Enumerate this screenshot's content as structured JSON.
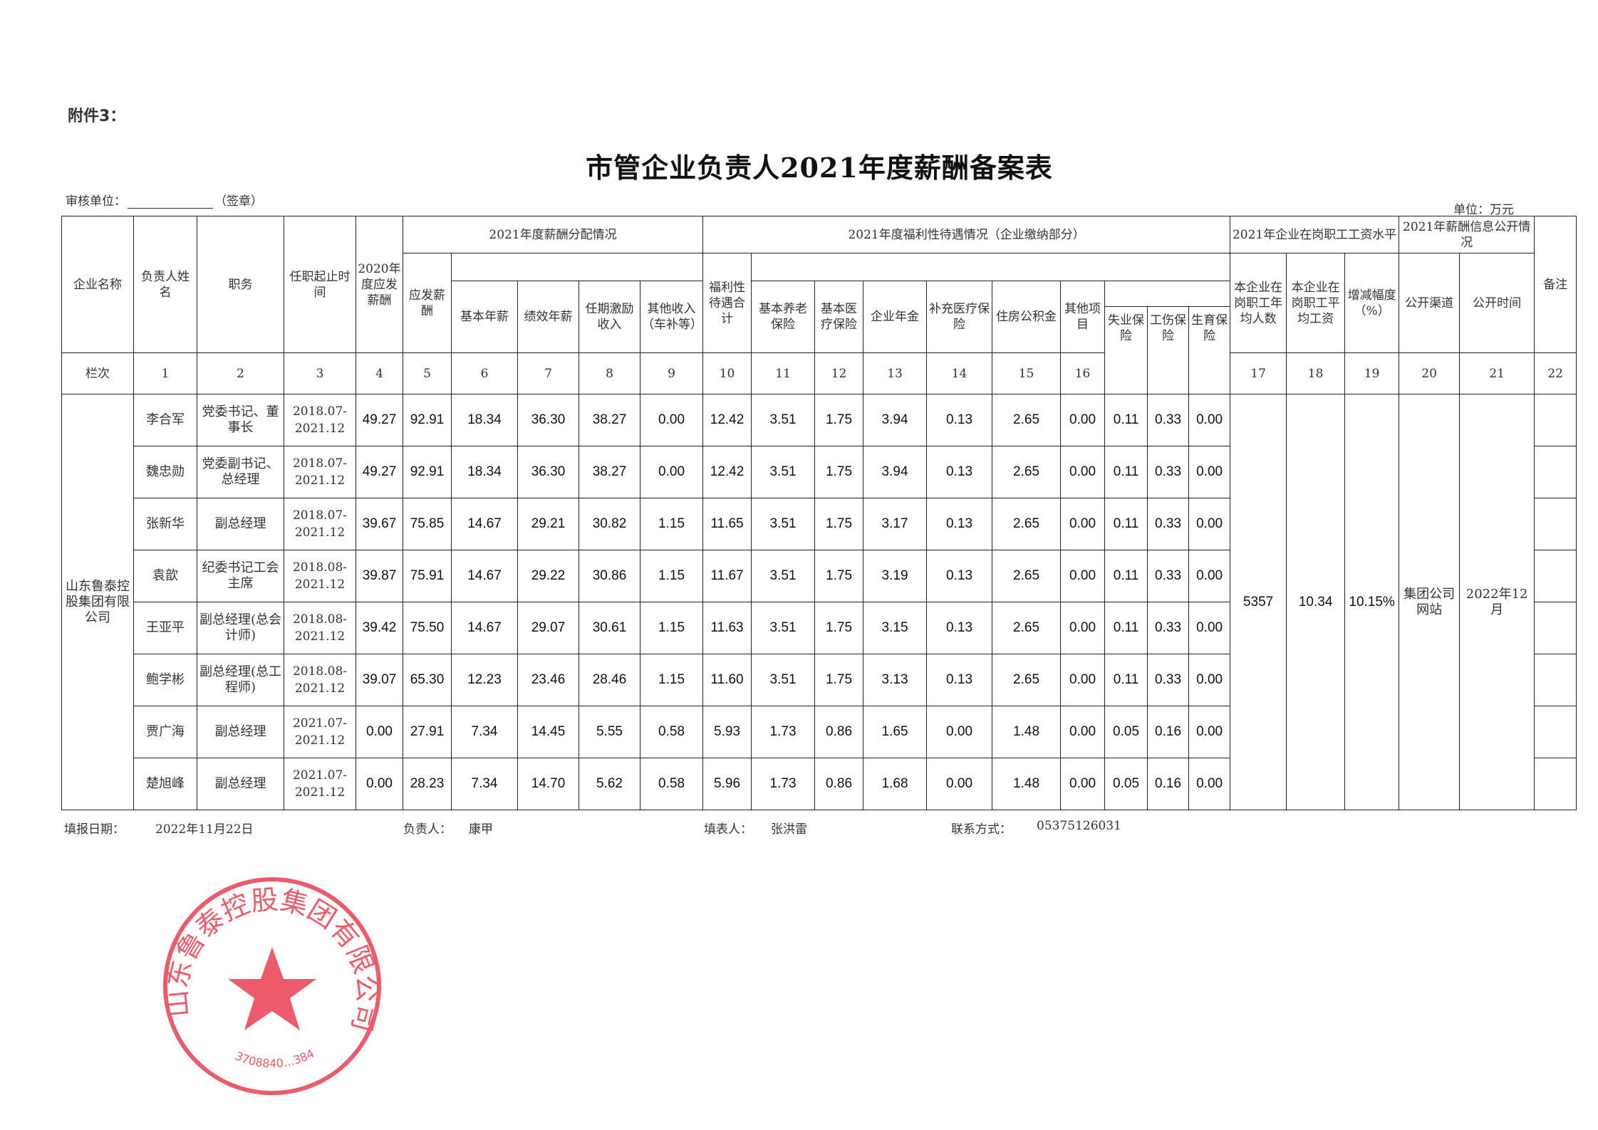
{
  "attachment": "附件3：",
  "title": "市管企业负责人2021年度薪酬备案表",
  "audit_unit_label": "审核单位：",
  "audit_seal_note": "（签章）",
  "unit": "单位：万元",
  "stamp": {
    "text": "山东鲁泰控股集团有限公司",
    "code": "3708840…384",
    "color": "#e8384a"
  },
  "headers": {
    "company": "企业名称",
    "name": "负责人姓名",
    "position": "职务",
    "term": "任职起止时间",
    "pay2020": "2020年度应发薪酬",
    "group_pay": "2021年度薪酬分配情况",
    "payable": "应发薪酬",
    "base": "基本年薪",
    "perf": "绩效年薪",
    "tenure": "任期激励收入",
    "other_income": "其他收入（车补等）",
    "group_welfare": "2021年度福利性待遇情况（企业缴纳部分）",
    "welfare_total": "福利性待遇合计",
    "pension": "基本养老保险",
    "medical": "基本医疗保险",
    "annuity": "企业年金",
    "supp_medical": "补充医疗保险",
    "housing": "住房公积金",
    "other_items": "其他项目",
    "unemployment": "失业保险",
    "injury": "工伤保险",
    "maternity": "生育保险",
    "group_wage": "2021年企业在岗职工工资水平",
    "staff_count": "本企业在岗职工年均人数",
    "avg_wage": "本企业在岗职工平均工资",
    "change": "增减幅度（%）",
    "group_disclosure": "2021年薪酬信息公开情况",
    "channel": "公开渠道",
    "time": "公开时间",
    "remark": "备注",
    "index_label": "栏次"
  },
  "index_numbers": [
    "1",
    "2",
    "3",
    "4",
    "5",
    "6",
    "7",
    "8",
    "9",
    "10",
    "11",
    "12",
    "13",
    "14",
    "15",
    "16",
    "17",
    "18",
    "19",
    "20",
    "21",
    "22"
  ],
  "company_name": "山东鲁泰控股集团有限公司",
  "shared": {
    "staff_count": "5357",
    "avg_wage": "10.34",
    "change": "10.15%",
    "channel": "集团公司网站",
    "time": "2022年12月"
  },
  "rows": [
    {
      "name": "李合军",
      "position": "党委书记、董事长",
      "term": "2018.07-\n2021.12",
      "values": [
        "49.27",
        "92.91",
        "18.34",
        "36.30",
        "38.27",
        "0.00",
        "12.42",
        "3.51",
        "1.75",
        "3.94",
        "0.13",
        "2.65",
        "0.00",
        "0.11",
        "0.33",
        "0.00"
      ]
    },
    {
      "name": "魏忠勋",
      "position": "党委副书记、总经理",
      "term": "2018.07-\n2021.12",
      "values": [
        "49.27",
        "92.91",
        "18.34",
        "36.30",
        "38.27",
        "0.00",
        "12.42",
        "3.51",
        "1.75",
        "3.94",
        "0.13",
        "2.65",
        "0.00",
        "0.11",
        "0.33",
        "0.00"
      ]
    },
    {
      "name": "张新华",
      "position": "副总经理",
      "term": "2018.07-\n2021.12",
      "values": [
        "39.67",
        "75.85",
        "14.67",
        "29.21",
        "30.82",
        "1.15",
        "11.65",
        "3.51",
        "1.75",
        "3.17",
        "0.13",
        "2.65",
        "0.00",
        "0.11",
        "0.33",
        "0.00"
      ]
    },
    {
      "name": "袁歆",
      "position": "纪委书记工会主席",
      "term": "2018.08-\n2021.12",
      "values": [
        "39.87",
        "75.91",
        "14.67",
        "29.22",
        "30.86",
        "1.15",
        "11.67",
        "3.51",
        "1.75",
        "3.19",
        "0.13",
        "2.65",
        "0.00",
        "0.11",
        "0.33",
        "0.00"
      ]
    },
    {
      "name": "王亚平",
      "position": "副总经理(总会计师)",
      "term": "2018.08-\n2021.12",
      "values": [
        "39.42",
        "75.50",
        "14.67",
        "29.07",
        "30.61",
        "1.15",
        "11.63",
        "3.51",
        "1.75",
        "3.15",
        "0.13",
        "2.65",
        "0.00",
        "0.11",
        "0.33",
        "0.00"
      ]
    },
    {
      "name": "鲍学彬",
      "position": "副总经理(总工程师)",
      "term": "2018.08-\n2021.12",
      "values": [
        "39.07",
        "65.30",
        "12.23",
        "23.46",
        "28.46",
        "1.15",
        "11.60",
        "3.51",
        "1.75",
        "3.13",
        "0.13",
        "2.65",
        "0.00",
        "0.11",
        "0.33",
        "0.00"
      ]
    },
    {
      "name": "贾广海",
      "position": "副总经理",
      "term": "2021.07-\n2021.12",
      "values": [
        "0.00",
        "27.91",
        "7.34",
        "14.45",
        "5.55",
        "0.58",
        "5.93",
        "1.73",
        "0.86",
        "1.65",
        "0.00",
        "1.48",
        "0.00",
        "0.05",
        "0.16",
        "0.00"
      ]
    },
    {
      "name": "楚旭峰",
      "position": "副总经理",
      "term": "2021.07-\n2021.12",
      "values": [
        "0.00",
        "28.23",
        "7.34",
        "14.70",
        "5.62",
        "0.58",
        "5.96",
        "1.73",
        "0.86",
        "1.68",
        "0.00",
        "1.48",
        "0.00",
        "0.05",
        "0.16",
        "0.00"
      ]
    }
  ],
  "footer": {
    "date_label": "填报日期：",
    "date": "2022年11月22日",
    "owner_label": "负责人：",
    "owner": "康甲",
    "filler_label": "填表人：",
    "filler": "张洪雷",
    "contact_label": "联系方式：",
    "contact": "05375126031"
  }
}
